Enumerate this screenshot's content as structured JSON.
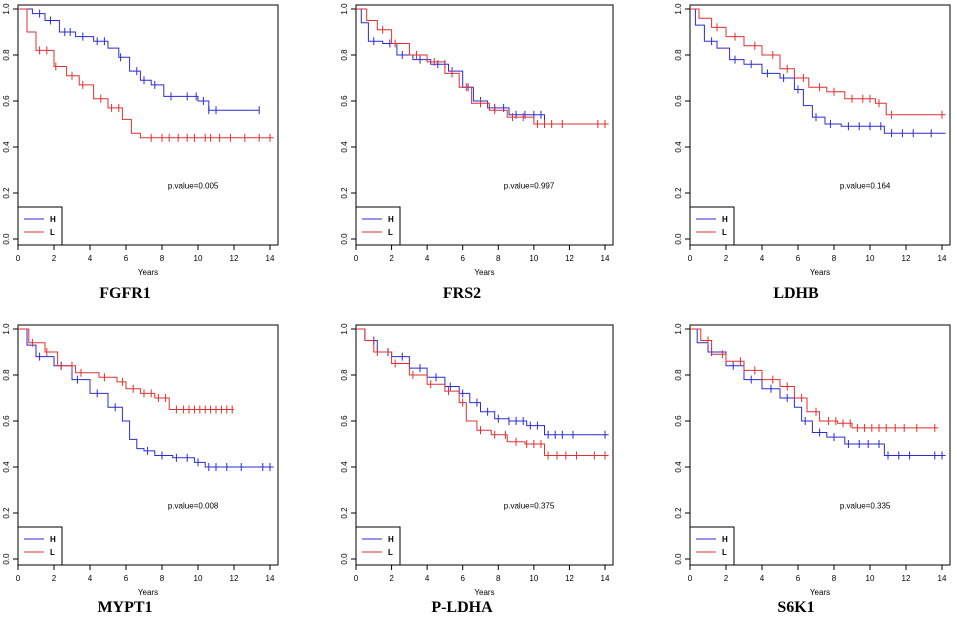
{
  "figure": {
    "type": "kaplan-meier grid"
  },
  "colors": {
    "H": "#2b2bd6",
    "L": "#e03030",
    "axis": "#000000"
  },
  "chart_data": [
    {
      "type": "line",
      "title": "FGFR1",
      "xlabel": "Years",
      "ylabel": "",
      "xlim": [
        0,
        14
      ],
      "ylim": [
        0,
        1
      ],
      "xticks": [
        "0",
        "2",
        "4",
        "6",
        "8",
        "10",
        "12",
        "14"
      ],
      "yticks": [
        "0.0",
        "0.2",
        "0.4",
        "0.6",
        "0.8",
        "1.0"
      ],
      "pvalue": "p.value=0.005",
      "legend": {
        "labels": [
          "H",
          "L"
        ],
        "placement": "bottom-left"
      },
      "series": [
        {
          "name": "H",
          "x": [
            0,
            0.8,
            1.5,
            2.3,
            3.2,
            4.2,
            5.0,
            5.6,
            6.2,
            6.8,
            7.4,
            8.1,
            9.2,
            10.0,
            10.6,
            13.4
          ],
          "y": [
            1.0,
            0.98,
            0.95,
            0.9,
            0.88,
            0.86,
            0.83,
            0.79,
            0.73,
            0.69,
            0.67,
            0.62,
            0.62,
            0.6,
            0.56,
            0.56
          ],
          "censor": [
            1.2,
            1.8,
            2.6,
            2.9,
            3.6,
            4.4,
            4.8,
            5.7,
            6.6,
            7.0,
            7.6,
            8.5,
            9.4,
            9.9,
            10.3,
            10.6,
            11.0,
            13.4
          ]
        },
        {
          "name": "L",
          "x": [
            0,
            0.5,
            1.0,
            2.0,
            2.7,
            3.4,
            4.2,
            5.0,
            5.8,
            6.3,
            6.8,
            7.2,
            14.2
          ],
          "y": [
            1.0,
            0.9,
            0.82,
            0.75,
            0.71,
            0.67,
            0.61,
            0.57,
            0.52,
            0.46,
            0.44,
            0.44,
            0.44
          ],
          "censor": [
            1.2,
            1.6,
            2.1,
            3.0,
            3.6,
            4.6,
            5.2,
            5.6,
            7.4,
            8.0,
            8.4,
            8.9,
            9.4,
            9.8,
            10.4,
            10.7,
            11.2,
            11.8,
            12.6,
            13.4,
            14.0
          ]
        }
      ]
    },
    {
      "type": "line",
      "title": "FRS2",
      "xlabel": "Years",
      "ylabel": "",
      "xlim": [
        0,
        14
      ],
      "ylim": [
        0,
        1
      ],
      "xticks": [
        "0",
        "2",
        "4",
        "6",
        "8",
        "10",
        "12",
        "14"
      ],
      "yticks": [
        "0.0",
        "0.2",
        "0.4",
        "0.6",
        "0.8",
        "1.0"
      ],
      "pvalue": "p.value=0.997",
      "legend": {
        "labels": [
          "H",
          "L"
        ],
        "placement": "bottom-left"
      },
      "series": [
        {
          "name": "H",
          "x": [
            0,
            0.3,
            0.7,
            1.5,
            2.3,
            3.2,
            4.2,
            5.2,
            6.0,
            6.6,
            7.4,
            8.6,
            9.6,
            10.6
          ],
          "y": [
            1.0,
            0.94,
            0.86,
            0.85,
            0.8,
            0.78,
            0.76,
            0.73,
            0.66,
            0.6,
            0.57,
            0.54,
            0.54,
            0.5
          ],
          "censor": [
            1.0,
            1.9,
            2.6,
            3.6,
            4.6,
            5.0,
            5.4,
            6.3,
            7.0,
            7.8,
            8.3,
            9.0,
            9.5,
            10.0,
            10.4
          ]
        },
        {
          "name": "L",
          "x": [
            0,
            0.6,
            1.2,
            2.0,
            3.0,
            4.0,
            5.0,
            5.8,
            6.5,
            7.5,
            8.5,
            10.0,
            14.2
          ],
          "y": [
            1.0,
            0.95,
            0.91,
            0.85,
            0.8,
            0.77,
            0.72,
            0.66,
            0.59,
            0.56,
            0.53,
            0.5,
            0.5
          ],
          "censor": [
            1.5,
            2.2,
            3.4,
            4.4,
            5.4,
            6.2,
            7.0,
            7.8,
            8.8,
            9.4,
            10.2,
            10.6,
            11.0,
            11.6,
            13.6,
            14.0
          ]
        }
      ]
    },
    {
      "type": "line",
      "title": "LDHB",
      "xlabel": "Years",
      "ylabel": "",
      "xlim": [
        0,
        14
      ],
      "ylim": [
        0,
        1
      ],
      "xticks": [
        "0",
        "2",
        "4",
        "6",
        "8",
        "10",
        "12",
        "14"
      ],
      "yticks": [
        "0.0",
        "0.2",
        "0.4",
        "0.6",
        "0.8",
        "1.0"
      ],
      "pvalue": "p.value=0.164",
      "legend": {
        "labels": [
          "H",
          "L"
        ],
        "placement": "bottom-left"
      },
      "series": [
        {
          "name": "H",
          "x": [
            0,
            0.3,
            0.8,
            1.5,
            2.2,
            3.0,
            4.0,
            5.0,
            5.8,
            6.3,
            6.8,
            7.5,
            8.4,
            10.2,
            10.8,
            14.2
          ],
          "y": [
            1.0,
            0.93,
            0.86,
            0.83,
            0.78,
            0.76,
            0.72,
            0.7,
            0.65,
            0.58,
            0.53,
            0.5,
            0.49,
            0.49,
            0.46,
            0.46
          ],
          "censor": [
            1.2,
            2.5,
            3.4,
            4.3,
            5.2,
            6.0,
            7.0,
            7.8,
            8.8,
            9.4,
            10.0,
            10.6,
            11.2,
            11.8,
            12.4,
            13.4
          ]
        },
        {
          "name": "L",
          "x": [
            0,
            0.5,
            1.2,
            2.0,
            3.0,
            4.0,
            5.0,
            5.8,
            6.6,
            7.6,
            8.6,
            10.3,
            10.9,
            14.2
          ],
          "y": [
            1.0,
            0.96,
            0.92,
            0.88,
            0.84,
            0.8,
            0.74,
            0.7,
            0.66,
            0.64,
            0.61,
            0.59,
            0.54,
            0.54
          ],
          "censor": [
            1.5,
            2.5,
            3.6,
            4.6,
            5.4,
            6.3,
            7.2,
            8.0,
            9.0,
            9.6,
            10.0,
            10.5,
            11.2,
            14.0
          ]
        }
      ]
    },
    {
      "type": "line",
      "title": "MYPT1",
      "xlabel": "Years",
      "ylabel": "",
      "xlim": [
        0,
        14
      ],
      "ylim": [
        0,
        1
      ],
      "xticks": [
        "0",
        "2",
        "4",
        "6",
        "8",
        "10",
        "12",
        "14"
      ],
      "yticks": [
        "0.0",
        "0.2",
        "0.4",
        "0.6",
        "0.8",
        "1.0"
      ],
      "pvalue": "p.value=0.008",
      "legend": {
        "labels": [
          "H",
          "L"
        ],
        "placement": "bottom-left"
      },
      "series": [
        {
          "name": "H",
          "x": [
            0,
            0.5,
            1.0,
            2.0,
            3.0,
            4.0,
            5.0,
            5.8,
            6.2,
            6.6,
            7.0,
            7.6,
            8.6,
            9.8,
            10.4,
            14.2
          ],
          "y": [
            1.0,
            0.93,
            0.88,
            0.84,
            0.78,
            0.72,
            0.66,
            0.6,
            0.52,
            0.48,
            0.47,
            0.45,
            0.44,
            0.42,
            0.4,
            0.4
          ],
          "censor": [
            1.2,
            2.4,
            3.3,
            4.4,
            5.4,
            7.2,
            8.0,
            8.8,
            9.4,
            10.0,
            10.6,
            11.0,
            11.6,
            12.4,
            13.6,
            14.0
          ]
        },
        {
          "name": "L",
          "x": [
            0,
            0.6,
            1.5,
            2.2,
            3.2,
            4.5,
            5.5,
            6.0,
            6.8,
            7.6,
            8.4,
            12.0
          ],
          "y": [
            1.0,
            0.94,
            0.9,
            0.84,
            0.81,
            0.79,
            0.77,
            0.74,
            0.72,
            0.7,
            0.65,
            0.65
          ],
          "censor": [
            0.8,
            1.6,
            2.4,
            3.0,
            3.5,
            4.8,
            5.8,
            6.4,
            7.0,
            7.4,
            7.8,
            8.2,
            8.8,
            9.2,
            9.5,
            9.8,
            10.1,
            10.4,
            10.7,
            11.0,
            11.3,
            11.6,
            11.9
          ]
        }
      ]
    },
    {
      "type": "line",
      "title": "P-LDHA",
      "xlabel": "Years",
      "ylabel": "",
      "xlim": [
        0,
        14
      ],
      "ylim": [
        0,
        1
      ],
      "xticks": [
        "0",
        "2",
        "4",
        "6",
        "8",
        "10",
        "12",
        "14"
      ],
      "yticks": [
        "0.0",
        "0.2",
        "0.4",
        "0.6",
        "0.8",
        "1.0"
      ],
      "pvalue": "p.value=0.375",
      "legend": {
        "labels": [
          "H",
          "L"
        ],
        "placement": "bottom-left"
      },
      "series": [
        {
          "name": "H",
          "x": [
            0,
            0.5,
            1.2,
            2.0,
            3.0,
            4.0,
            5.0,
            5.8,
            6.4,
            7.0,
            7.8,
            8.6,
            9.6,
            10.6,
            14.2
          ],
          "y": [
            1.0,
            0.95,
            0.9,
            0.88,
            0.83,
            0.79,
            0.75,
            0.72,
            0.68,
            0.64,
            0.61,
            0.6,
            0.58,
            0.54,
            0.54
          ],
          "censor": [
            1.0,
            1.8,
            2.6,
            3.6,
            4.5,
            5.3,
            6.0,
            6.8,
            7.4,
            8.0,
            8.6,
            9.0,
            9.4,
            9.8,
            10.2,
            10.8,
            11.2,
            11.6,
            12.2,
            14.0
          ]
        },
        {
          "name": "L",
          "x": [
            0,
            0.5,
            1.0,
            2.0,
            3.0,
            4.0,
            5.0,
            5.8,
            6.2,
            6.8,
            7.6,
            8.5,
            9.5,
            10.6,
            14.2
          ],
          "y": [
            1.0,
            0.95,
            0.9,
            0.85,
            0.8,
            0.76,
            0.73,
            0.68,
            0.6,
            0.56,
            0.54,
            0.51,
            0.5,
            0.45,
            0.45
          ],
          "censor": [
            1.2,
            2.2,
            3.2,
            4.2,
            5.2,
            6.0,
            7.0,
            7.8,
            8.4,
            9.0,
            9.6,
            10.0,
            10.4,
            10.8,
            11.3,
            11.8,
            12.4,
            13.4,
            14.0
          ]
        }
      ]
    },
    {
      "type": "line",
      "title": "S6K1",
      "xlabel": "Years",
      "ylabel": "",
      "xlim": [
        0,
        14
      ],
      "ylim": [
        0,
        1
      ],
      "xticks": [
        "0",
        "2",
        "4",
        "6",
        "8",
        "10",
        "12",
        "14"
      ],
      "yticks": [
        "0.0",
        "0.2",
        "0.4",
        "0.6",
        "0.8",
        "1.0"
      ],
      "pvalue": "p.value=0.335",
      "legend": {
        "labels": [
          "H",
          "L"
        ],
        "placement": "bottom-left"
      },
      "series": [
        {
          "name": "H",
          "x": [
            0,
            0.4,
            1.0,
            2.0,
            3.0,
            4.0,
            5.0,
            5.8,
            6.2,
            6.8,
            7.6,
            8.6,
            10.3,
            10.8,
            14.2
          ],
          "y": [
            1.0,
            0.94,
            0.9,
            0.84,
            0.78,
            0.74,
            0.7,
            0.66,
            0.6,
            0.55,
            0.53,
            0.5,
            0.5,
            0.45,
            0.45
          ],
          "censor": [
            1.2,
            2.4,
            3.4,
            4.5,
            5.4,
            6.4,
            7.2,
            8.0,
            8.8,
            9.4,
            9.9,
            10.5,
            11.0,
            11.6,
            12.2,
            13.6,
            14.0
          ]
        },
        {
          "name": "L",
          "x": [
            0,
            0.6,
            1.2,
            2.0,
            3.0,
            4.0,
            5.0,
            5.8,
            6.5,
            7.2,
            8.2,
            9.0,
            13.8
          ],
          "y": [
            1.0,
            0.95,
            0.89,
            0.86,
            0.82,
            0.78,
            0.75,
            0.7,
            0.64,
            0.6,
            0.59,
            0.57,
            0.57
          ],
          "censor": [
            1.0,
            1.8,
            2.8,
            3.6,
            4.6,
            5.4,
            6.2,
            7.0,
            7.7,
            8.1,
            8.5,
            8.9,
            9.3,
            9.7,
            10.1,
            10.5,
            10.9,
            11.4,
            11.9,
            12.6,
            13.6
          ]
        }
      ]
    }
  ]
}
